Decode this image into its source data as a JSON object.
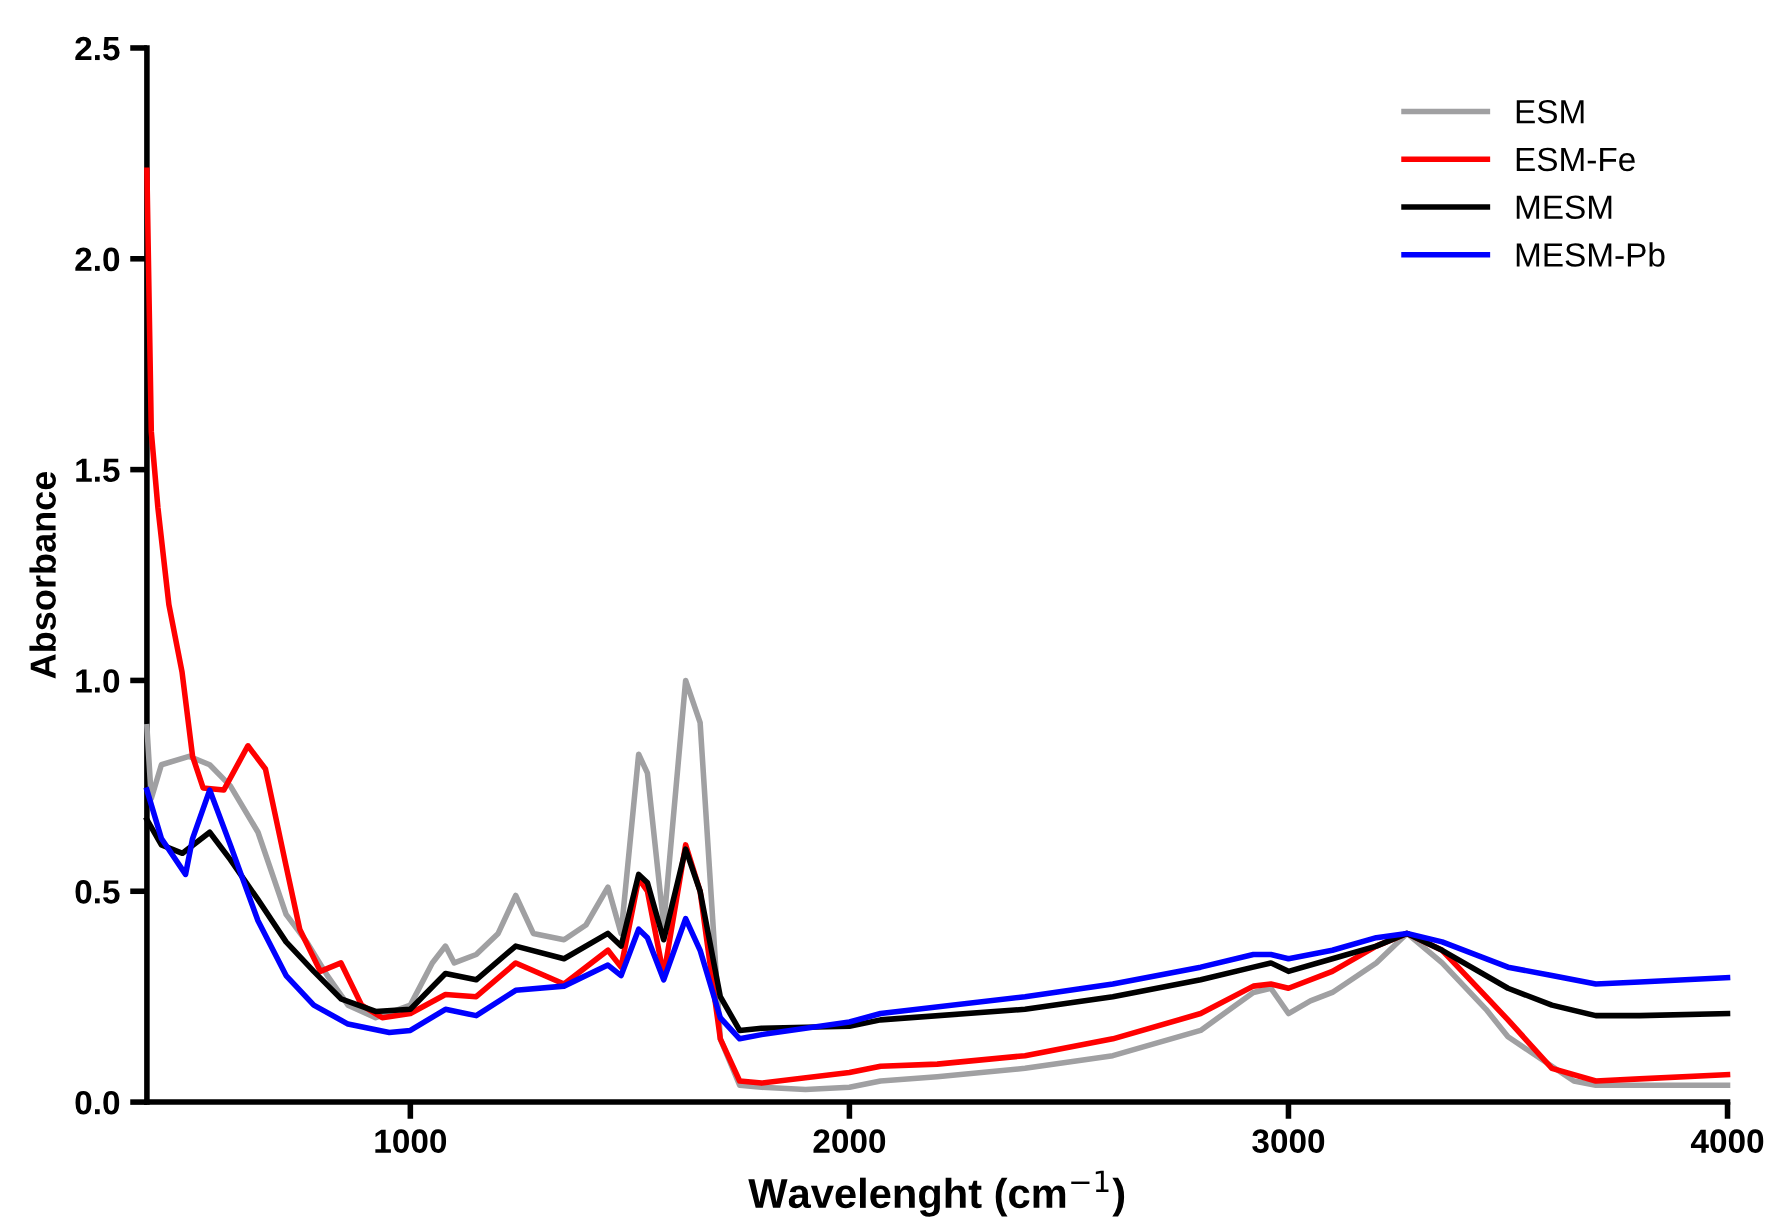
{
  "chart_data": {
    "type": "line",
    "xlabel": "Wavelenght (cm$^{−1}$)",
    "ylabel": "Absorbance",
    "xlim": [
      400,
      4000
    ],
    "xticks": [
      1000,
      2000,
      3000,
      4000
    ],
    "ylim": [
      0,
      2.5
    ],
    "yticks": [
      {
        "value": 0,
        "label": "0.0"
      },
      {
        "value": 0.5,
        "label": "0.5"
      },
      {
        "value": 1,
        "label": "1.0"
      },
      {
        "value": 1.5,
        "label": "1.5"
      },
      {
        "value": 2,
        "label": "2.0"
      },
      {
        "value": 2.5,
        "label": "2.5"
      }
    ],
    "grid": false,
    "legend": "top right",
    "marker": "none",
    "line_style": "solid",
    "series": [
      {
        "name": "ESM",
        "color": "#a0a0a2",
        "x": [
          400,
          410,
          433,
          496,
          543,
          590,
          653,
          717,
          764,
          811,
          858,
          921,
          1000,
          1050,
          1080,
          1100,
          1150,
          1200,
          1240,
          1280,
          1350,
          1400,
          1450,
          1480,
          1520,
          1540,
          1577,
          1627,
          1660,
          1706,
          1750,
          1800,
          1900,
          2000,
          2071,
          2200,
          2400,
          2600,
          2800,
          2920,
          2960,
          3000,
          3050,
          3100,
          3200,
          3270,
          3350,
          3450,
          3500,
          3550,
          3650,
          3700,
          3800,
          4000
        ],
        "values": [
          0.89,
          0.72,
          0.8,
          0.82,
          0.8,
          0.75,
          0.64,
          0.445,
          0.38,
          0.3,
          0.23,
          0.2,
          0.23,
          0.33,
          0.37,
          0.33,
          0.35,
          0.4,
          0.49,
          0.4,
          0.385,
          0.42,
          0.51,
          0.4,
          0.825,
          0.78,
          0.42,
          1.0,
          0.9,
          0.15,
          0.04,
          0.035,
          0.03,
          0.035,
          0.05,
          0.06,
          0.08,
          0.11,
          0.17,
          0.26,
          0.27,
          0.21,
          0.24,
          0.26,
          0.33,
          0.4,
          0.33,
          0.22,
          0.155,
          0.12,
          0.05,
          0.04,
          0.04,
          0.04
        ]
      },
      {
        "name": "ESM-Fe",
        "color": "#ff0000",
        "x": [
          400,
          410,
          425,
          450,
          480,
          504,
          528,
          575,
          630,
          670,
          717,
          748,
          795,
          842,
          889,
          936,
          1000,
          1080,
          1150,
          1240,
          1350,
          1450,
          1480,
          1520,
          1540,
          1577,
          1627,
          1660,
          1706,
          1750,
          1800,
          2000,
          2071,
          2200,
          2400,
          2600,
          2800,
          2920,
          2960,
          3000,
          3100,
          3200,
          3270,
          3350,
          3450,
          3500,
          3600,
          3700,
          3800,
          4000
        ],
        "values": [
          2.21,
          1.59,
          1.41,
          1.18,
          1.02,
          0.82,
          0.745,
          0.74,
          0.845,
          0.79,
          0.56,
          0.41,
          0.31,
          0.33,
          0.23,
          0.2,
          0.21,
          0.255,
          0.25,
          0.33,
          0.28,
          0.36,
          0.32,
          0.53,
          0.5,
          0.3,
          0.61,
          0.5,
          0.15,
          0.05,
          0.045,
          0.07,
          0.085,
          0.09,
          0.11,
          0.15,
          0.21,
          0.275,
          0.28,
          0.27,
          0.31,
          0.37,
          0.4,
          0.36,
          0.25,
          0.195,
          0.08,
          0.05,
          0.055,
          0.065
        ]
      },
      {
        "name": "MESM",
        "color": "#000000",
        "x": [
          400,
          433,
          481,
          543,
          590,
          653,
          717,
          780,
          842,
          921,
          1000,
          1080,
          1150,
          1240,
          1350,
          1450,
          1480,
          1520,
          1540,
          1577,
          1627,
          1660,
          1706,
          1750,
          1800,
          2000,
          2071,
          2400,
          2600,
          2800,
          2920,
          2960,
          3000,
          3100,
          3200,
          3270,
          3350,
          3500,
          3600,
          3700,
          3800,
          4000
        ],
        "values": [
          0.67,
          0.61,
          0.59,
          0.64,
          0.575,
          0.48,
          0.38,
          0.31,
          0.245,
          0.215,
          0.22,
          0.305,
          0.29,
          0.37,
          0.34,
          0.4,
          0.37,
          0.54,
          0.52,
          0.385,
          0.6,
          0.5,
          0.25,
          0.17,
          0.175,
          0.18,
          0.195,
          0.22,
          0.25,
          0.29,
          0.32,
          0.33,
          0.31,
          0.34,
          0.37,
          0.4,
          0.36,
          0.27,
          0.23,
          0.205,
          0.205,
          0.21
        ]
      },
      {
        "name": "MESM-Pb",
        "color": "#0000ff",
        "x": [
          400,
          433,
          488,
          504,
          543,
          590,
          653,
          717,
          780,
          858,
          952,
          1000,
          1080,
          1150,
          1240,
          1350,
          1450,
          1480,
          1520,
          1540,
          1577,
          1627,
          1660,
          1706,
          1750,
          1800,
          2000,
          2071,
          2400,
          2600,
          2800,
          2920,
          2960,
          3000,
          3100,
          3200,
          3270,
          3350,
          3500,
          3600,
          3700,
          3800,
          4000
        ],
        "values": [
          0.74,
          0.625,
          0.54,
          0.625,
          0.74,
          0.61,
          0.43,
          0.3,
          0.23,
          0.185,
          0.165,
          0.17,
          0.22,
          0.205,
          0.265,
          0.275,
          0.325,
          0.3,
          0.41,
          0.39,
          0.29,
          0.435,
          0.36,
          0.2,
          0.15,
          0.16,
          0.19,
          0.21,
          0.25,
          0.28,
          0.32,
          0.35,
          0.35,
          0.34,
          0.36,
          0.39,
          0.4,
          0.38,
          0.32,
          0.3,
          0.28,
          0.285,
          0.295
        ]
      }
    ]
  }
}
